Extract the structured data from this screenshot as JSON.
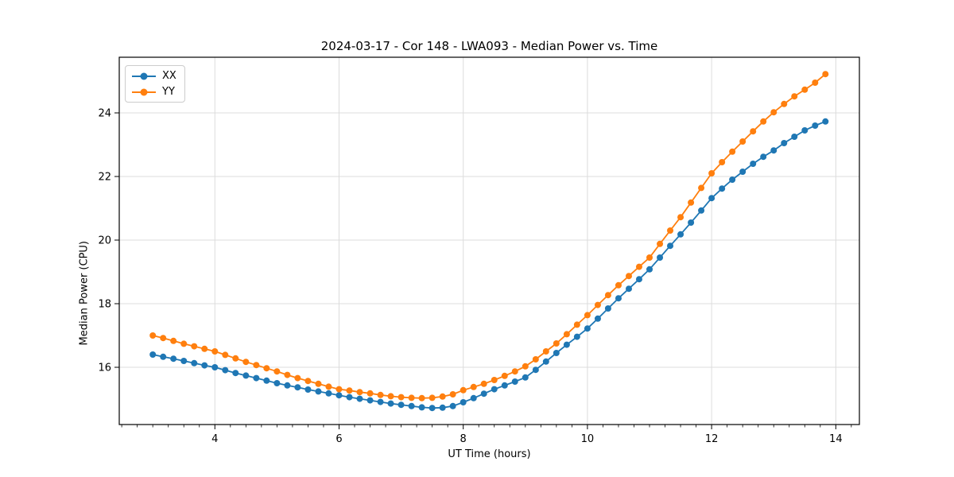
{
  "figure": {
    "background_color": "#ffffff",
    "frame_color": "#000000",
    "grid_color": "#dcdcdc"
  },
  "chart_data": {
    "type": "line",
    "title": "2024-03-17 - Cor 148 - LWA093 - Median Power vs. Time",
    "xlabel": "UT Time (hours)",
    "ylabel": "Median Power (CPU)",
    "xlim": [
      2.46,
      14.38
    ],
    "ylim": [
      14.2,
      25.75
    ],
    "x_ticks": [
      4,
      6,
      8,
      10,
      12,
      14
    ],
    "y_ticks": [
      16,
      18,
      20,
      22,
      24
    ],
    "x_minor_step": 0.25,
    "grid": true,
    "legend_position": "upper-left",
    "marker": "circle",
    "x": [
      3,
      3.167,
      3.333,
      3.5,
      3.667,
      3.833,
      4,
      4.167,
      4.333,
      4.5,
      4.667,
      4.833,
      5,
      5.167,
      5.333,
      5.5,
      5.667,
      5.833,
      6,
      6.167,
      6.333,
      6.5,
      6.667,
      6.833,
      7,
      7.167,
      7.333,
      7.5,
      7.667,
      7.833,
      8,
      8.167,
      8.333,
      8.5,
      8.667,
      8.833,
      9,
      9.167,
      9.333,
      9.5,
      9.667,
      9.833,
      10,
      10.167,
      10.333,
      10.5,
      10.667,
      10.833,
      11,
      11.167,
      11.333,
      11.5,
      11.667,
      11.833,
      12,
      12.167,
      12.333,
      12.5,
      12.667,
      12.833,
      13,
      13.167,
      13.333,
      13.5,
      13.667,
      13.833
    ],
    "series": [
      {
        "name": "XX",
        "color": "#1f77b4",
        "values": [
          16.4,
          16.33,
          16.27,
          16.2,
          16.13,
          16.06,
          16.0,
          15.91,
          15.82,
          15.74,
          15.66,
          15.58,
          15.5,
          15.43,
          15.37,
          15.3,
          15.24,
          15.18,
          15.12,
          15.06,
          15.01,
          14.96,
          14.91,
          14.86,
          14.82,
          14.78,
          14.74,
          14.72,
          14.73,
          14.78,
          14.9,
          15.03,
          15.17,
          15.31,
          15.43,
          15.55,
          15.68,
          15.92,
          16.18,
          16.45,
          16.71,
          16.96,
          17.22,
          17.53,
          17.85,
          18.17,
          18.47,
          18.77,
          19.08,
          19.45,
          19.82,
          20.18,
          20.55,
          20.93,
          21.32,
          21.62,
          21.9,
          22.15,
          22.4,
          22.62,
          22.82,
          23.05,
          23.25,
          23.45,
          23.6,
          23.73
        ]
      },
      {
        "name": "YY",
        "color": "#ff7f0e",
        "values": [
          17.0,
          16.92,
          16.83,
          16.74,
          16.66,
          16.58,
          16.5,
          16.39,
          16.28,
          16.17,
          16.07,
          15.97,
          15.87,
          15.76,
          15.66,
          15.57,
          15.48,
          15.39,
          15.31,
          15.27,
          15.22,
          15.18,
          15.13,
          15.09,
          15.06,
          15.04,
          15.03,
          15.04,
          15.08,
          15.15,
          15.28,
          15.38,
          15.48,
          15.6,
          15.73,
          15.87,
          16.03,
          16.25,
          16.5,
          16.75,
          17.04,
          17.34,
          17.64,
          17.96,
          18.27,
          18.58,
          18.87,
          19.16,
          19.45,
          19.88,
          20.3,
          20.72,
          21.18,
          21.64,
          22.1,
          22.45,
          22.78,
          23.1,
          23.42,
          23.73,
          24.02,
          24.28,
          24.52,
          24.73,
          24.95,
          25.22
        ]
      }
    ]
  }
}
